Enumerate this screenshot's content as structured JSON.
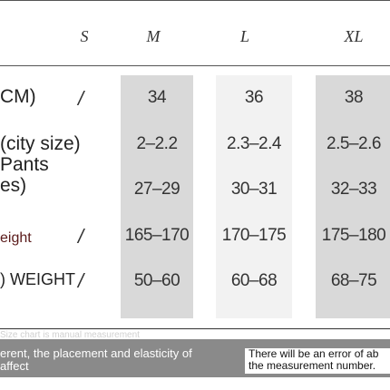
{
  "header": {
    "sizes": [
      "S",
      "M",
      "L",
      "XL"
    ]
  },
  "rows": [
    {
      "label": "CM)",
      "values": [
        "/",
        "34",
        "36",
        "38"
      ]
    },
    {
      "label": "(city size)",
      "values": [
        "",
        "2–2.2",
        "2.3–2.4",
        "2.5–2.6"
      ]
    },
    {
      "label": "Pants\nes)",
      "values": [
        "",
        "27–29",
        "30–31",
        "32–33"
      ]
    },
    {
      "label": "eight",
      "values": [
        "/",
        "165–170",
        "170–175",
        "175–180"
      ]
    },
    {
      "label": ") WEIGHT",
      "values": [
        "/",
        "50–60",
        "60–68",
        "68–75"
      ]
    }
  ],
  "notes": {
    "faint": "Size chart is manual measurement",
    "left": "erent, the placement and elasticity of\naffect",
    "right": "There will be an error of ab\nthe measurement number."
  },
  "colors": {
    "column_shade": "#d9d9d9",
    "column_light": "#f2f2f2",
    "bar": "#8a8a8a",
    "label_red": "#5a1a1a"
  }
}
